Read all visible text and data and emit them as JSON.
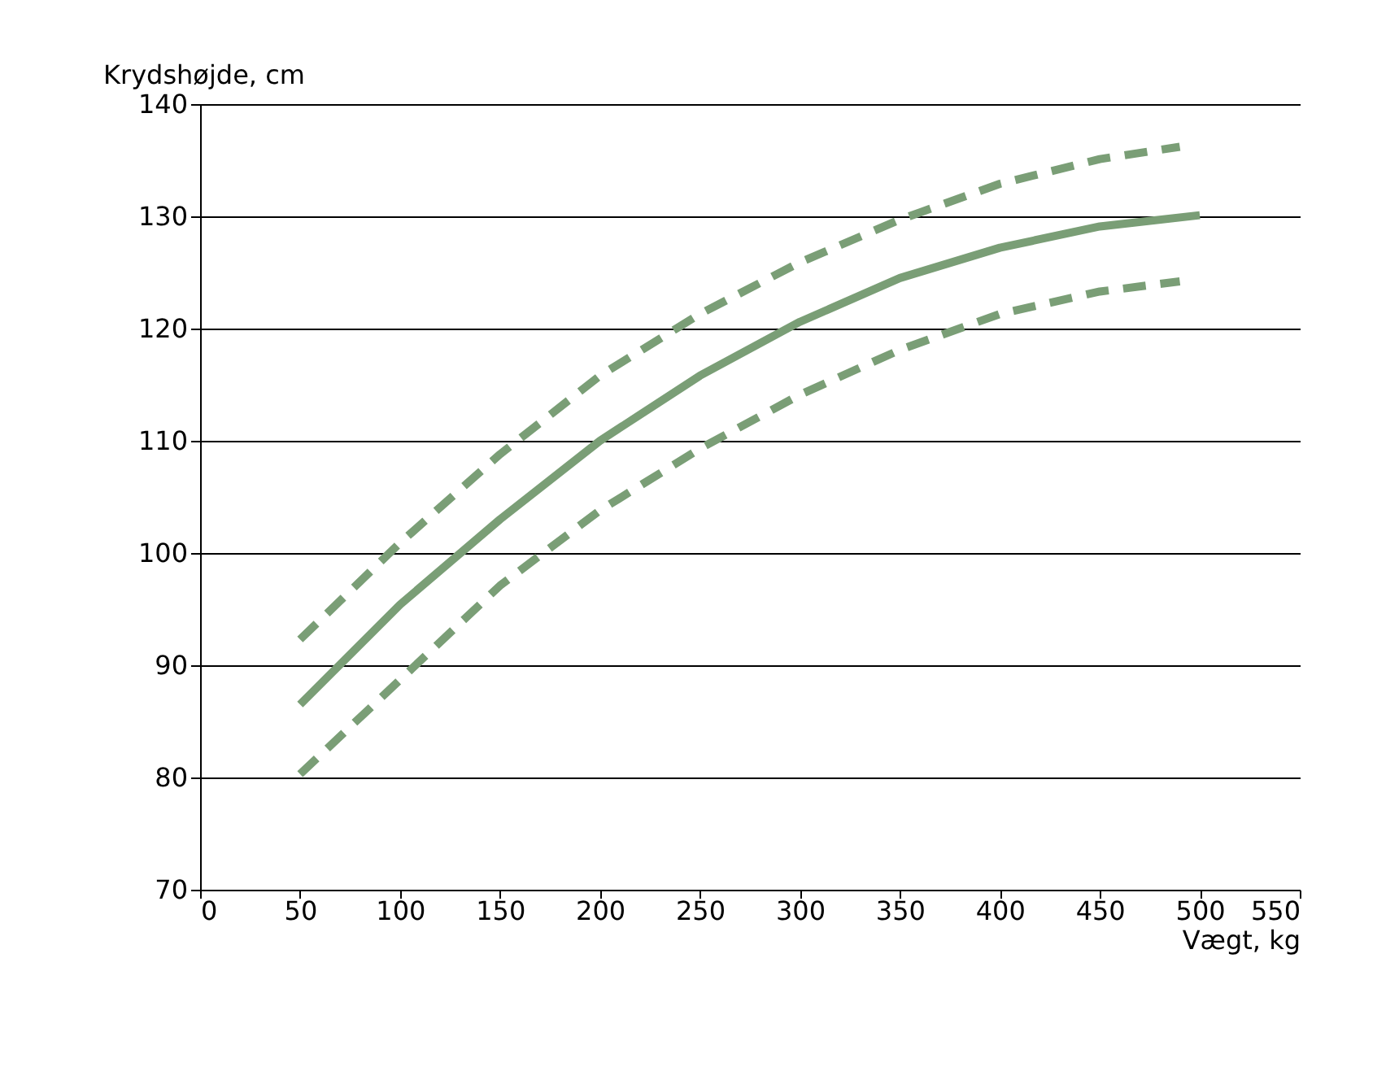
{
  "chart_data": {
    "type": "line",
    "xlabel": "Vægt, kg",
    "ylabel": "Krydshøjde, cm",
    "xlim": [
      0,
      550
    ],
    "xticks": [
      0,
      50,
      100,
      150,
      200,
      250,
      300,
      350,
      400,
      450,
      500,
      550
    ],
    "ylim": [
      70,
      140
    ],
    "yticks": [
      70,
      80,
      90,
      100,
      110,
      120,
      130,
      140
    ],
    "grid": "y",
    "marker": "none",
    "series": [
      {
        "color": "#7a9e76",
        "line_style": "dashed",
        "x": [
          50,
          100,
          150,
          200,
          250,
          300,
          350,
          400,
          450,
          490
        ],
        "values": [
          92.3,
          100.9,
          108.8,
          115.8,
          121.3,
          125.9,
          129.7,
          132.9,
          135.1,
          136.2
        ]
      },
      {
        "color": "#7a9e76",
        "line_style": "solid",
        "x": [
          50,
          100,
          150,
          200,
          250,
          300,
          350,
          400,
          450,
          500
        ],
        "values": [
          86.5,
          95.4,
          103,
          110,
          115.8,
          120.6,
          124.5,
          127.2,
          129.1,
          130.1
        ]
      },
      {
        "color": "#7a9e76",
        "line_style": "dashed",
        "x": [
          50,
          100,
          150,
          200,
          250,
          300,
          350,
          400,
          450,
          490
        ],
        "values": [
          80.3,
          88.7,
          97.1,
          103.8,
          109.3,
          114.1,
          118.1,
          121.3,
          123.3,
          124.2
        ]
      }
    ]
  }
}
